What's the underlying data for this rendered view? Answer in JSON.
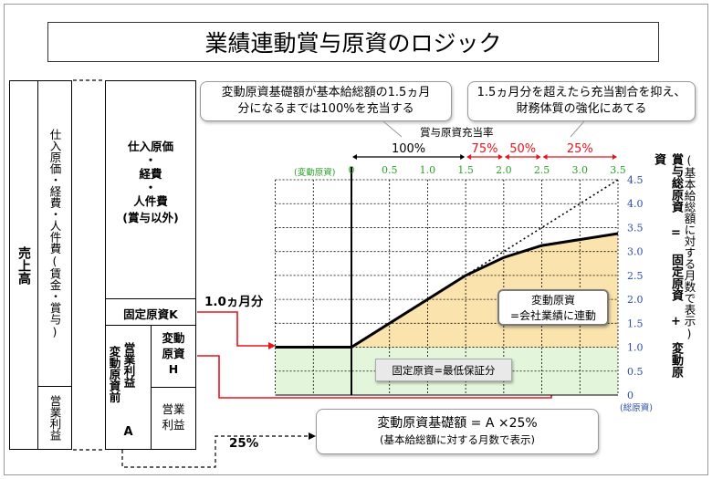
{
  "title": "業績連動賞与原資のロジック",
  "left_column": {
    "uriage": "売上高",
    "costs_outer": "仕入原価・経費・人件費(賃金・賞与)",
    "eigyo_rieki_outer": "営業利益",
    "costs_inner": [
      "仕入原価",
      "・",
      "経費",
      "・",
      "人件費",
      "(賞与以外)"
    ],
    "kotei_k": "固定原資K",
    "eigyo_rieki_mae": "営業利益",
    "hendo_mae": "変動原資前",
    "a_label": "A",
    "hendo_h_line1": "変動",
    "hendo_h_line2": "原資",
    "h_label": "H",
    "eigyo_rieki_inner": "営業利益"
  },
  "callouts": {
    "left": [
      "変動原資基礎額が基本給総額の1.5ヵ月",
      "分になるまでは100%を充当する"
    ],
    "right": [
      "1.5ヵ月分を超えたら充当割合を抑え、",
      "財務体質の強化にあてる"
    ],
    "formula": "変動原資基礎額 = A ×25%",
    "formula_sub": "(基本給総額に対する月数で表示)"
  },
  "labels": {
    "rate_header": "賞与原資充当率",
    "x_axis_label": "(変動原資)",
    "y_axis_label": "(総原資)",
    "one_month": "1.0ヵ月分",
    "pct_25": "25%",
    "kotei_box": "固定原資=最低保証分",
    "hendo_box": [
      "変動原資",
      "=会社業績に連動"
    ],
    "right_vertical_1": "賞与総原資 = 固定原資 + 変動原資",
    "right_vertical_2": "(基本給総額に対する月数で表示)"
  },
  "colors": {
    "orange_fill": "#fbe3ad",
    "green_fill": "#e3f6dc",
    "red": "#e8141b",
    "green_text": "#2aa12a",
    "blue_text": "#2b4ca8"
  },
  "chart_data": {
    "type": "line",
    "x_ticks": [
      "0",
      "0.5",
      "1.0",
      "1.5",
      "2.0",
      "2.5",
      "3.0",
      "3.5"
    ],
    "y_ticks": [
      "0",
      "0.5",
      "1.0",
      "1.5",
      "2.0",
      "2.5",
      "3.0",
      "3.5",
      "4.0",
      "4.5"
    ],
    "xlim": [
      0,
      3.5
    ],
    "ylim": [
      0,
      4.5
    ],
    "x_negative_extent": 1.0,
    "rates": [
      {
        "label": "100%",
        "from": 0,
        "to": 1.5
      },
      {
        "label": "75%",
        "from": 1.5,
        "to": 2.0
      },
      {
        "label": "50%",
        "from": 2.0,
        "to": 2.5
      },
      {
        "label": "25%",
        "from": 2.5,
        "to": 3.5
      }
    ],
    "series": [
      {
        "x": [
          -1.0,
          0,
          1.5,
          2.0,
          2.5,
          3.5
        ],
        "y": [
          1.0,
          1.0,
          2.5,
          2.875,
          3.125,
          3.375
        ]
      },
      {
        "x": [
          1.5,
          3.5
        ],
        "y": [
          2.5,
          4.5
        ],
        "dotted": true
      }
    ],
    "grid": true
  }
}
